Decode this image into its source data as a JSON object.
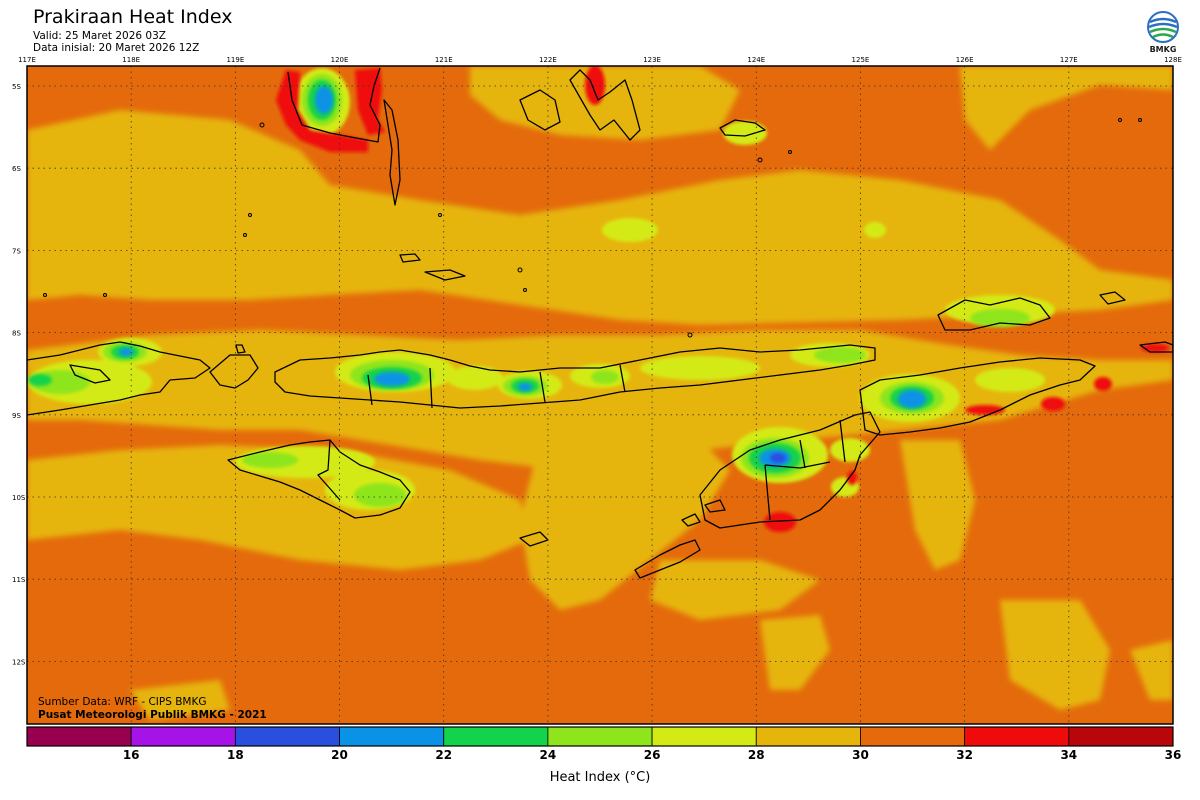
{
  "header": {
    "title": "Prakiraan Heat Index",
    "valid": "Valid: 25 Maret 2026 03Z",
    "init": "Data inisial: 20 Maret 2026 12Z",
    "logo_text": "BMKG"
  },
  "footer": {
    "source": "Sumber Data: WRF - CIPS BMKG",
    "org": "Pusat Meteorologi Publik BMKG - 2021"
  },
  "map": {
    "lon_labels": [
      "117E",
      "118E",
      "119E",
      "120E",
      "121E",
      "122E",
      "123E",
      "124E",
      "125E",
      "126E",
      "127E",
      "128E"
    ],
    "lat_labels": [
      "5S",
      "6S",
      "7S",
      "8S",
      "9S",
      "10S",
      "11S",
      "12S"
    ],
    "background_color": "#e46a0c"
  },
  "colorbar": {
    "title": "Heat Index (°C)",
    "colors": [
      "#96004e",
      "#a513e6",
      "#2a4fdf",
      "#0a93e6",
      "#13d24c",
      "#8ee51c",
      "#d4ea14",
      "#e6b50c",
      "#e46a0c",
      "#ef0b0b",
      "#b8060a"
    ],
    "tick_labels": [
      "16",
      "18",
      "20",
      "22",
      "24",
      "26",
      "28",
      "30",
      "32",
      "34",
      "36"
    ]
  }
}
